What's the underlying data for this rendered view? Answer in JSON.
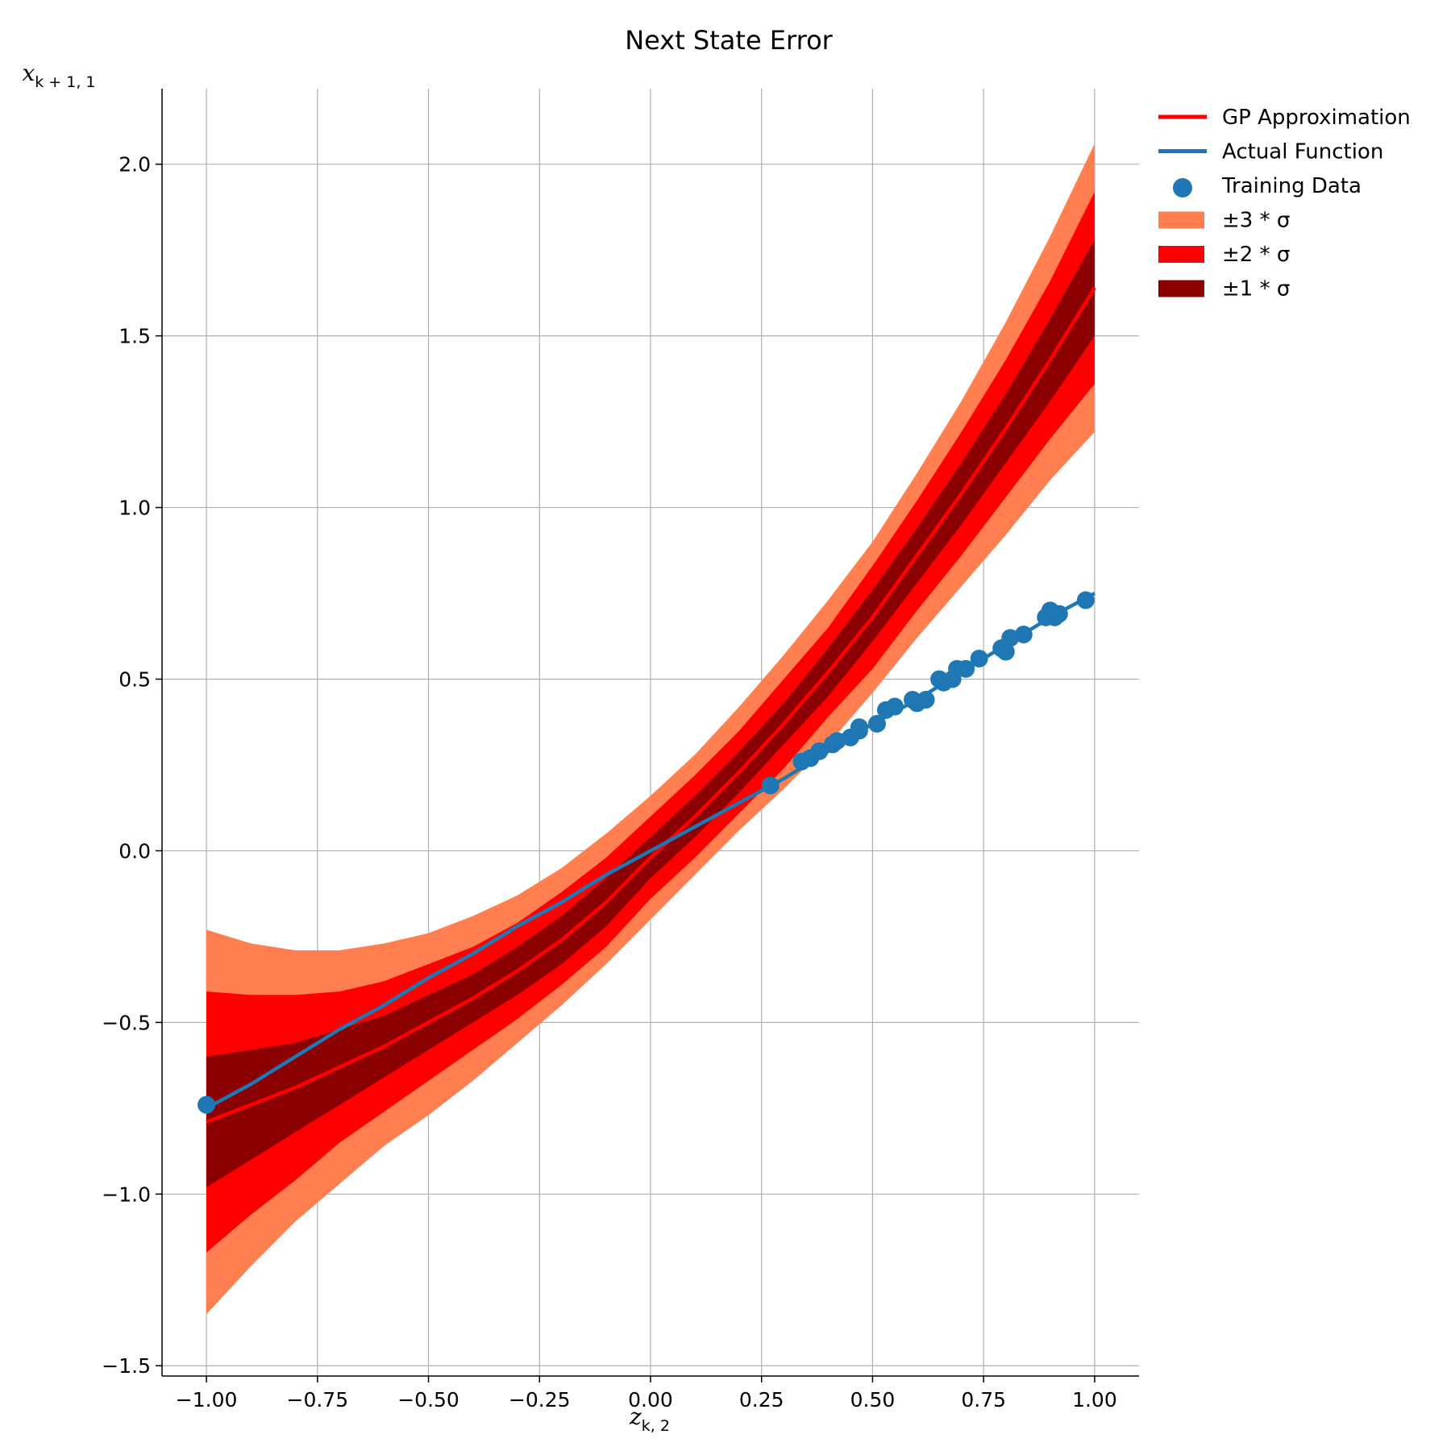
{
  "chart_data": {
    "type": "line",
    "title": "Next State Error",
    "xlabel": {
      "base": "z",
      "sub": "k, 2"
    },
    "ylabel": {
      "base": "x",
      "sub": "k + 1, 1"
    },
    "xlim": [
      -1.1,
      1.1
    ],
    "ylim": [
      -1.53,
      2.22
    ],
    "xticks": [
      -1.0,
      -0.75,
      -0.5,
      -0.25,
      0.0,
      0.25,
      0.5,
      0.75,
      1.0
    ],
    "xtick_labels": [
      "−1.00",
      "−0.75",
      "−0.50",
      "−0.25",
      "0.00",
      "0.25",
      "0.50",
      "0.75",
      "1.00"
    ],
    "yticks": [
      -1.5,
      -1.0,
      -0.5,
      0.0,
      0.5,
      1.0,
      1.5,
      2.0
    ],
    "ytick_labels": [
      "−1.5",
      "−1.0",
      "−0.5",
      "0.0",
      "0.5",
      "1.0",
      "1.5",
      "2.0"
    ],
    "grid": true,
    "legend_position": "outside-top-right",
    "colors": {
      "gp": "#ff0000",
      "actual": "#1f77b4",
      "training": "#1f77b4",
      "band3": "#ff7f50",
      "band2": "#ff0000",
      "band1": "#8b0000"
    },
    "gp_mean": {
      "x": [
        -1.0,
        -0.9,
        -0.8,
        -0.7,
        -0.6,
        -0.5,
        -0.4,
        -0.3,
        -0.2,
        -0.1,
        0.0,
        0.1,
        0.2,
        0.3,
        0.4,
        0.5,
        0.6,
        0.7,
        0.8,
        0.9,
        1.0
      ],
      "y": [
        -0.79,
        -0.74,
        -0.69,
        -0.63,
        -0.57,
        -0.5,
        -0.43,
        -0.35,
        -0.26,
        -0.15,
        -0.02,
        0.1,
        0.23,
        0.37,
        0.52,
        0.68,
        0.86,
        1.04,
        1.23,
        1.43,
        1.64
      ]
    },
    "bands": [
      {
        "name": "±3 * σ",
        "color": "#ff7f50",
        "x": [
          -1.0,
          -0.9,
          -0.8,
          -0.7,
          -0.6,
          -0.5,
          -0.4,
          -0.3,
          -0.2,
          -0.1,
          0.0,
          0.1,
          0.2,
          0.3,
          0.4,
          0.5,
          0.6,
          0.7,
          0.8,
          0.9,
          1.0
        ],
        "upper": [
          -0.23,
          -0.27,
          -0.29,
          -0.29,
          -0.27,
          -0.24,
          -0.19,
          -0.13,
          -0.05,
          0.05,
          0.16,
          0.28,
          0.42,
          0.57,
          0.73,
          0.9,
          1.1,
          1.31,
          1.54,
          1.79,
          2.06
        ],
        "lower": [
          -1.35,
          -1.21,
          -1.08,
          -0.97,
          -0.86,
          -0.77,
          -0.67,
          -0.56,
          -0.45,
          -0.33,
          -0.2,
          -0.07,
          0.06,
          0.18,
          0.31,
          0.46,
          0.62,
          0.77,
          0.92,
          1.08,
          1.22
        ]
      },
      {
        "name": "±2 * σ",
        "color": "#ff0000",
        "x": [
          -1.0,
          -0.9,
          -0.8,
          -0.7,
          -0.6,
          -0.5,
          -0.4,
          -0.3,
          -0.2,
          -0.1,
          0.0,
          0.1,
          0.2,
          0.3,
          0.4,
          0.5,
          0.6,
          0.7,
          0.8,
          0.9,
          1.0
        ],
        "upper": [
          -0.41,
          -0.42,
          -0.42,
          -0.41,
          -0.38,
          -0.33,
          -0.28,
          -0.21,
          -0.12,
          -0.02,
          0.1,
          0.22,
          0.35,
          0.5,
          0.65,
          0.83,
          1.02,
          1.22,
          1.43,
          1.66,
          1.92
        ],
        "lower": [
          -1.17,
          -1.06,
          -0.96,
          -0.85,
          -0.76,
          -0.67,
          -0.58,
          -0.49,
          -0.39,
          -0.28,
          -0.14,
          -0.02,
          0.11,
          0.24,
          0.39,
          0.53,
          0.7,
          0.86,
          1.03,
          1.2,
          1.36
        ]
      },
      {
        "name": "±1 * σ",
        "color": "#8b0000",
        "x": [
          -1.0,
          -0.9,
          -0.8,
          -0.7,
          -0.6,
          -0.5,
          -0.4,
          -0.3,
          -0.2,
          -0.1,
          0.0,
          0.1,
          0.2,
          0.3,
          0.4,
          0.5,
          0.6,
          0.7,
          0.8,
          0.9,
          1.0
        ],
        "upper": [
          -0.6,
          -0.58,
          -0.56,
          -0.52,
          -0.48,
          -0.42,
          -0.36,
          -0.28,
          -0.19,
          -0.08,
          0.04,
          0.16,
          0.29,
          0.43,
          0.59,
          0.76,
          0.94,
          1.13,
          1.33,
          1.55,
          1.78
        ],
        "lower": [
          -0.98,
          -0.9,
          -0.82,
          -0.74,
          -0.66,
          -0.58,
          -0.5,
          -0.42,
          -0.33,
          -0.22,
          -0.08,
          0.04,
          0.17,
          0.31,
          0.45,
          0.61,
          0.78,
          0.95,
          1.13,
          1.31,
          1.5
        ]
      }
    ],
    "actual_function": {
      "x": [
        -1.0,
        -0.9,
        -0.8,
        -0.7,
        -0.6,
        -0.5,
        -0.4,
        -0.3,
        -0.2,
        -0.1,
        0.0,
        0.1,
        0.2,
        0.3,
        0.4,
        0.5,
        0.6,
        0.7,
        0.8,
        0.9,
        1.0
      ],
      "y": [
        -0.75,
        -0.68,
        -0.6,
        -0.52,
        -0.45,
        -0.37,
        -0.3,
        -0.22,
        -0.15,
        -0.07,
        0.0,
        0.07,
        0.14,
        0.21,
        0.29,
        0.37,
        0.44,
        0.52,
        0.6,
        0.68,
        0.75
      ]
    },
    "training_data": {
      "x": [
        -1.0,
        0.27,
        0.34,
        0.36,
        0.38,
        0.41,
        0.42,
        0.45,
        0.47,
        0.47,
        0.51,
        0.53,
        0.55,
        0.59,
        0.6,
        0.62,
        0.65,
        0.66,
        0.68,
        0.69,
        0.71,
        0.74,
        0.79,
        0.8,
        0.81,
        0.84,
        0.89,
        0.9,
        0.91,
        0.92,
        0.98
      ],
      "y": [
        -0.74,
        0.19,
        0.26,
        0.27,
        0.29,
        0.31,
        0.32,
        0.33,
        0.35,
        0.36,
        0.37,
        0.41,
        0.42,
        0.44,
        0.43,
        0.44,
        0.5,
        0.49,
        0.5,
        0.53,
        0.53,
        0.56,
        0.59,
        0.58,
        0.62,
        0.63,
        0.68,
        0.7,
        0.68,
        0.69,
        0.73
      ]
    },
    "legend": [
      {
        "label": "GP Approximation",
        "kind": "line",
        "color": "#ff0000"
      },
      {
        "label": "Actual Function",
        "kind": "line",
        "color": "#1f77b4"
      },
      {
        "label": "Training Data",
        "kind": "marker",
        "color": "#1f77b4"
      },
      {
        "label": "±3 * σ",
        "kind": "patch",
        "color": "#ff7f50"
      },
      {
        "label": "±2 * σ",
        "kind": "patch",
        "color": "#ff0000"
      },
      {
        "label": "±1 * σ",
        "kind": "patch",
        "color": "#8b0000"
      }
    ]
  }
}
